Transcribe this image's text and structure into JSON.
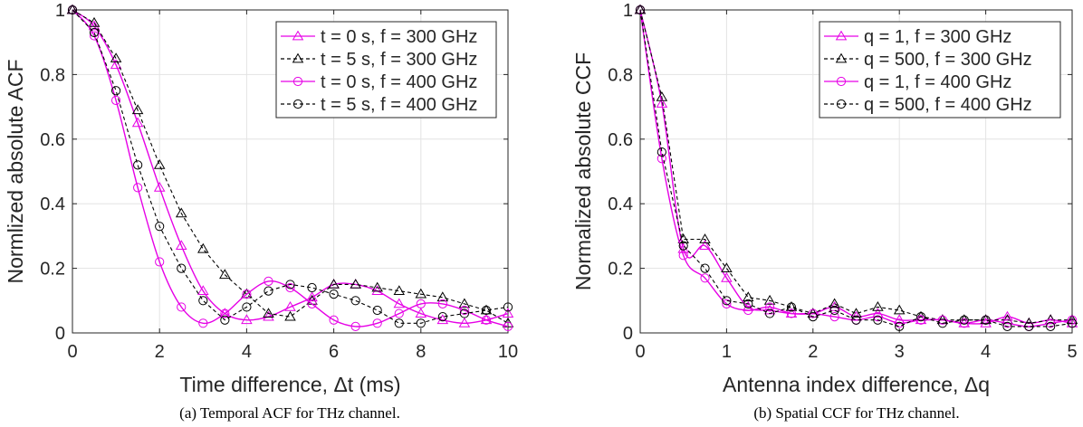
{
  "chart_data": [
    {
      "type": "line",
      "caption": "(a) Temporal ACF for THz channel.",
      "xlabel": "Time difference, Δt (ms)",
      "ylabel": "Normlized absolute ACF",
      "xlim": [
        0,
        10
      ],
      "ylim": [
        0,
        1
      ],
      "xticks": [
        0,
        2,
        4,
        6,
        8,
        10
      ],
      "yticks": [
        0,
        0.2,
        0.4,
        0.6,
        0.8,
        1
      ],
      "xtick_labels": [
        "0",
        "2",
        "4",
        "6",
        "8",
        "10"
      ],
      "ytick_labels": [
        "0",
        "0.2",
        "0.4",
        "0.6",
        "0.8",
        "1"
      ],
      "grid": true,
      "legend_position": "top-right",
      "series": [
        {
          "name": "t = 0 s, f = 300 GHz",
          "color": "#e600e6",
          "line_style": "solid",
          "marker": "triangle",
          "x": [
            0,
            0.5,
            1,
            1.5,
            2,
            2.5,
            3,
            3.5,
            4,
            4.5,
            5,
            5.5,
            6,
            6.5,
            7,
            7.5,
            8,
            8.5,
            9,
            9.5,
            10
          ],
          "y": [
            1,
            0.95,
            0.83,
            0.65,
            0.45,
            0.27,
            0.13,
            0.06,
            0.04,
            0.05,
            0.08,
            0.11,
            0.15,
            0.15,
            0.13,
            0.09,
            0.06,
            0.04,
            0.03,
            0.04,
            0.06
          ]
        },
        {
          "name": "t = 5 s, f = 300 GHz",
          "color": "#000000",
          "line_style": "dashed",
          "marker": "triangle",
          "x": [
            0,
            0.5,
            1,
            1.5,
            2,
            2.5,
            3,
            3.5,
            4,
            4.5,
            5,
            5.5,
            6,
            6.5,
            7,
            7.5,
            8,
            8.5,
            9,
            9.5,
            10
          ],
          "y": [
            1,
            0.96,
            0.85,
            0.69,
            0.52,
            0.37,
            0.26,
            0.18,
            0.12,
            0.06,
            0.05,
            0.1,
            0.15,
            0.15,
            0.14,
            0.13,
            0.12,
            0.11,
            0.09,
            0.07,
            0.03
          ]
        },
        {
          "name": "t = 0 s, f = 400 GHz",
          "color": "#e600e6",
          "line_style": "solid",
          "marker": "circle",
          "x": [
            0,
            0.5,
            1,
            1.5,
            2,
            2.5,
            3,
            3.5,
            4,
            4.5,
            5,
            5.5,
            6,
            6.5,
            7,
            7.5,
            8,
            8.5,
            9,
            9.5,
            10
          ],
          "y": [
            1,
            0.92,
            0.72,
            0.45,
            0.22,
            0.08,
            0.03,
            0.06,
            0.12,
            0.16,
            0.14,
            0.09,
            0.04,
            0.02,
            0.03,
            0.06,
            0.09,
            0.09,
            0.07,
            0.04,
            0.02
          ]
        },
        {
          "name": "t = 5 s, f = 400 GHz",
          "color": "#000000",
          "line_style": "dashed",
          "marker": "circle",
          "x": [
            0,
            0.5,
            1,
            1.5,
            2,
            2.5,
            3,
            3.5,
            4,
            4.5,
            5,
            5.5,
            6,
            6.5,
            7,
            7.5,
            8,
            8.5,
            9,
            9.5,
            10
          ],
          "y": [
            1,
            0.93,
            0.75,
            0.52,
            0.33,
            0.2,
            0.1,
            0.04,
            0.08,
            0.13,
            0.15,
            0.14,
            0.12,
            0.1,
            0.07,
            0.03,
            0.03,
            0.05,
            0.06,
            0.07,
            0.08
          ]
        }
      ]
    },
    {
      "type": "line",
      "caption": "(b) Spatial CCF for THz channel.",
      "xlabel": "Antenna index difference, Δq",
      "ylabel": "Normalized absolute CCF",
      "xlim": [
        0,
        5
      ],
      "ylim": [
        0,
        1
      ],
      "xticks": [
        0,
        1,
        2,
        3,
        4,
        5
      ],
      "yticks": [
        0,
        0.2,
        0.4,
        0.6,
        0.8,
        1
      ],
      "xtick_labels": [
        "0",
        "1",
        "2",
        "3",
        "4",
        "5"
      ],
      "ytick_labels": [
        "0",
        "0.2",
        "0.4",
        "0.6",
        "0.8",
        "1"
      ],
      "grid": true,
      "legend_position": "top-right",
      "series": [
        {
          "name": "q = 1, f = 300 GHz",
          "color": "#e600e6",
          "line_style": "solid",
          "marker": "triangle",
          "x": [
            0,
            0.25,
            0.5,
            0.75,
            1,
            1.25,
            1.5,
            1.75,
            2,
            2.25,
            2.5,
            2.75,
            3,
            3.25,
            3.5,
            3.75,
            4,
            4.25,
            4.5,
            4.75,
            5
          ],
          "y": [
            1,
            0.71,
            0.26,
            0.27,
            0.17,
            0.08,
            0.07,
            0.06,
            0.06,
            0.08,
            0.05,
            0.06,
            0.04,
            0.04,
            0.04,
            0.03,
            0.03,
            0.05,
            0.03,
            0.04,
            0.03
          ]
        },
        {
          "name": "q = 500, f = 300 GHz",
          "color": "#000000",
          "line_style": "dashed",
          "marker": "triangle",
          "x": [
            0,
            0.25,
            0.5,
            0.75,
            1,
            1.25,
            1.5,
            1.75,
            2,
            2.25,
            2.5,
            2.75,
            3,
            3.25,
            3.5,
            3.75,
            4,
            4.25,
            4.5,
            4.75,
            5
          ],
          "y": [
            1,
            0.73,
            0.29,
            0.29,
            0.2,
            0.11,
            0.1,
            0.08,
            0.06,
            0.09,
            0.06,
            0.08,
            0.07,
            0.05,
            0.04,
            0.04,
            0.04,
            0.04,
            0.03,
            0.04,
            0.04
          ]
        },
        {
          "name": "q = 1, f = 400 GHz",
          "color": "#e600e6",
          "line_style": "solid",
          "marker": "circle",
          "x": [
            0,
            0.25,
            0.5,
            0.75,
            1,
            1.25,
            1.5,
            1.75,
            2,
            2.25,
            2.5,
            2.75,
            3,
            3.25,
            3.5,
            3.75,
            4,
            4.25,
            4.5,
            4.75,
            5
          ],
          "y": [
            1,
            0.54,
            0.24,
            0.17,
            0.09,
            0.07,
            0.08,
            0.06,
            0.06,
            0.05,
            0.04,
            0.05,
            0.03,
            0.04,
            0.04,
            0.03,
            0.04,
            0.03,
            0.02,
            0.03,
            0.04
          ]
        },
        {
          "name": "q = 500, f = 400 GHz",
          "color": "#000000",
          "line_style": "dashed",
          "marker": "circle",
          "x": [
            0,
            0.25,
            0.5,
            0.75,
            1,
            1.25,
            1.5,
            1.75,
            2,
            2.25,
            2.5,
            2.75,
            3,
            3.25,
            3.5,
            3.75,
            4,
            4.25,
            4.5,
            4.75,
            5
          ],
          "y": [
            1,
            0.56,
            0.27,
            0.2,
            0.1,
            0.09,
            0.06,
            0.08,
            0.05,
            0.07,
            0.04,
            0.04,
            0.02,
            0.05,
            0.03,
            0.04,
            0.04,
            0.02,
            0.02,
            0.02,
            0.03
          ]
        }
      ]
    }
  ]
}
